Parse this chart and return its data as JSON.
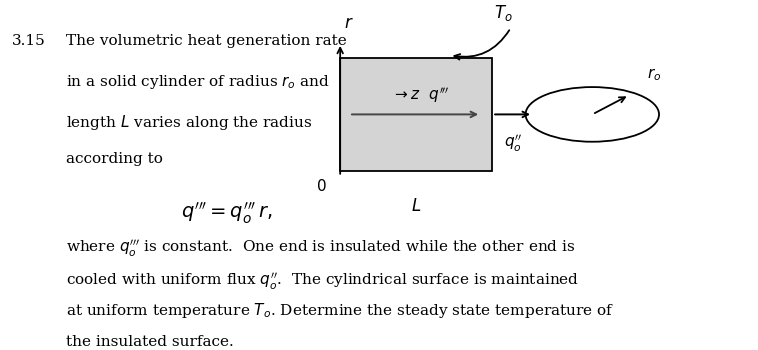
{
  "background_color": "#ffffff",
  "problem_number": "3.15",
  "main_text_lines": [
    "The volumetric heat generation rate",
    "in a solid cylinder of radius $r_o$ and",
    "length $L$ varies along the radius",
    "according to"
  ],
  "body_text_line1": "where $q_o^{\\prime\\prime\\prime}$ is constant.  One end is insulated while the other end is",
  "body_text_line2": "cooled with uniform flux $q_o^{\\prime\\prime}$.  The cylindrical surface is maintained",
  "body_text_line3": "at uniform temperature $T_o$. Determine the steady state temperature of",
  "body_text_line4": "the insulated surface.",
  "text_fontsize": 11,
  "eq_fontsize": 14
}
